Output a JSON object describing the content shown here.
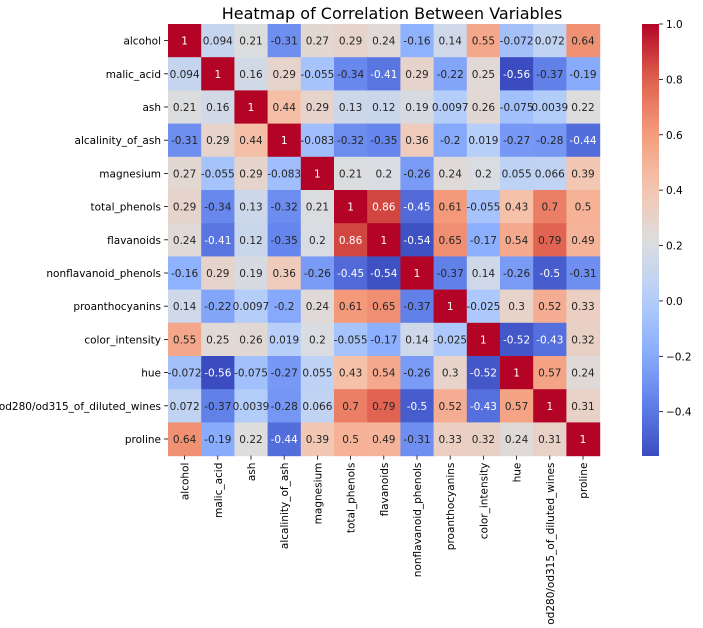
{
  "chart_data": {
    "type": "heatmap",
    "title": "Heatmap of Correlation Between Variables",
    "xlabel": "",
    "ylabel": "",
    "labels": [
      "alcohol",
      "malic_acid",
      "ash",
      "alcalinity_of_ash",
      "magnesium",
      "total_phenols",
      "flavanoids",
      "nonflavanoid_phenols",
      "proanthocyanins",
      "color_intensity",
      "hue",
      "od280/od315_of_diluted_wines",
      "proline"
    ],
    "annotations": [
      [
        "1",
        "0.094",
        "0.21",
        "-0.31",
        "0.27",
        "0.29",
        "0.24",
        "-0.16",
        "0.14",
        "0.55",
        "-0.072",
        "0.072",
        "0.64"
      ],
      [
        "0.094",
        "1",
        "0.16",
        "0.29",
        "-0.055",
        "-0.34",
        "-0.41",
        "0.29",
        "-0.22",
        "0.25",
        "-0.56",
        "-0.37",
        "-0.19"
      ],
      [
        "0.21",
        "0.16",
        "1",
        "0.44",
        "0.29",
        "0.13",
        "0.12",
        "0.19",
        "0.0097",
        "0.26",
        "-0.075",
        "0.0039",
        "0.22"
      ],
      [
        "-0.31",
        "0.29",
        "0.44",
        "1",
        "-0.083",
        "-0.32",
        "-0.35",
        "0.36",
        "-0.2",
        "0.019",
        "-0.27",
        "-0.28",
        "-0.44"
      ],
      [
        "0.27",
        "-0.055",
        "0.29",
        "-0.083",
        "1",
        "0.21",
        "0.2",
        "-0.26",
        "0.24",
        "0.2",
        "0.055",
        "0.066",
        "0.39"
      ],
      [
        "0.29",
        "-0.34",
        "0.13",
        "-0.32",
        "0.21",
        "1",
        "0.86",
        "-0.45",
        "0.61",
        "-0.055",
        "0.43",
        "0.7",
        "0.5"
      ],
      [
        "0.24",
        "-0.41",
        "0.12",
        "-0.35",
        "0.2",
        "0.86",
        "1",
        "-0.54",
        "0.65",
        "-0.17",
        "0.54",
        "0.79",
        "0.49"
      ],
      [
        "-0.16",
        "0.29",
        "0.19",
        "0.36",
        "-0.26",
        "-0.45",
        "-0.54",
        "1",
        "-0.37",
        "0.14",
        "-0.26",
        "-0.5",
        "-0.31"
      ],
      [
        "0.14",
        "-0.22",
        "0.0097",
        "-0.2",
        "0.24",
        "0.61",
        "0.65",
        "-0.37",
        "1",
        "-0.025",
        "0.3",
        "0.52",
        "0.33"
      ],
      [
        "0.55",
        "0.25",
        "0.26",
        "0.019",
        "0.2",
        "-0.055",
        "-0.17",
        "0.14",
        "-0.025",
        "1",
        "-0.52",
        "-0.43",
        "0.32"
      ],
      [
        "-0.072",
        "-0.56",
        "-0.075",
        "-0.27",
        "0.055",
        "0.43",
        "0.54",
        "-0.26",
        "0.3",
        "-0.52",
        "1",
        "0.57",
        "0.24"
      ],
      [
        "0.072",
        "-0.37",
        "0.0039",
        "-0.28",
        "0.066",
        "0.7",
        "0.79",
        "-0.5",
        "0.52",
        "-0.43",
        "0.57",
        "1",
        "0.31"
      ],
      [
        "0.64",
        "-0.19",
        "0.22",
        "-0.44",
        "0.39",
        "0.5",
        "0.49",
        "-0.31",
        "0.33",
        "0.32",
        "0.24",
        "0.31",
        "1"
      ]
    ],
    "colormap": "coolwarm",
    "colorbar": {
      "vmin": -0.56,
      "vmax": 1.0,
      "ticks": [
        -0.4,
        -0.2,
        0.0,
        0.2,
        0.4,
        0.6,
        0.8,
        1.0
      ],
      "tick_labels": [
        "−0.4",
        "−0.2",
        "0.0",
        "0.2",
        "0.4",
        "0.6",
        "0.8",
        "1.0"
      ]
    },
    "legend": "colorbar right",
    "grid": false,
    "colors": {
      "low": "#3b4cc0",
      "mid": "#dddddd",
      "high": "#b40426",
      "text_dark": "#262626",
      "text_light": "#ffffff"
    }
  }
}
